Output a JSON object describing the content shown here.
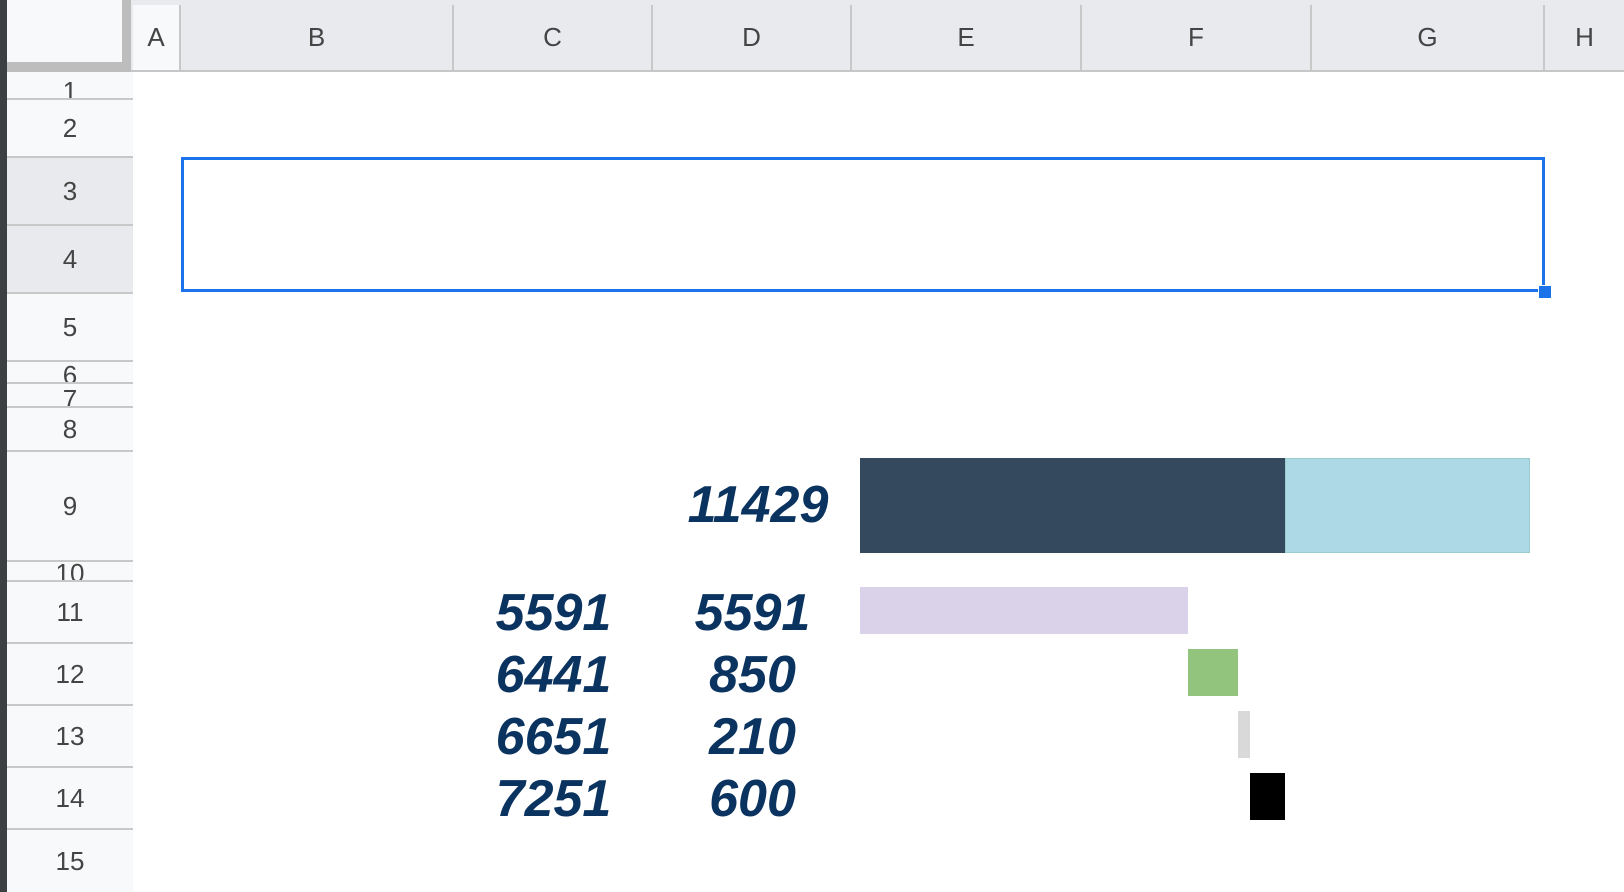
{
  "columns": [
    "A",
    "B",
    "C",
    "D",
    "E",
    "F",
    "G",
    "H"
  ],
  "rows": [
    "1",
    "2",
    "3",
    "4",
    "5",
    "6",
    "7",
    "8",
    "9",
    "10",
    "11",
    "12",
    "13",
    "14",
    "15"
  ],
  "values": {
    "total": "11429",
    "c_column": [
      "5591",
      "6441",
      "6651",
      "7251"
    ],
    "d_column": [
      "5591",
      "850",
      "210",
      "600"
    ]
  },
  "bars": {
    "total_completed": 7251,
    "total_remaining": 4178,
    "total": 11429,
    "segments": [
      {
        "start": 0,
        "value": 5591,
        "color": "#d9d2e9"
      },
      {
        "start": 5591,
        "value": 850,
        "color": "#93c47d"
      },
      {
        "start": 6441,
        "value": 210,
        "color": "#d9d9d9"
      },
      {
        "start": 6651,
        "value": 600,
        "color": "#000000"
      }
    ],
    "colors": {
      "completed": "#34495e",
      "remaining": "#add8e6"
    }
  },
  "selection": {
    "range": "B3:G4",
    "color": "#1a73e8"
  }
}
